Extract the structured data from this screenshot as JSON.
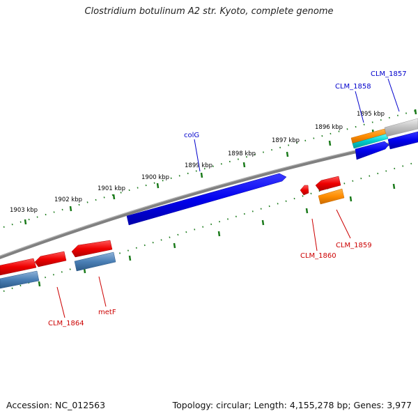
{
  "title": "Clostridium botulinum A2 str. Kyoto, complete genome",
  "footer": {
    "accession": "Accession: NC_012563",
    "topology": "Topology: circular; Length: 4,155,278 bp; Genes: 3,977"
  },
  "colors": {
    "forward_gene": "#0000ee",
    "reverse_gene": "#ee0000",
    "forward_label": "#0000cc",
    "reverse_label": "#cc0000",
    "orange_feature": "#ff8c00",
    "cyan_feature": "#00cccc",
    "steelblue_feature": "#4a7fb5",
    "gray_feature": "#c0c0c0",
    "backbone": "#808080",
    "tick": "#1a7a1a",
    "tick_label": "#000000"
  },
  "ticks": [
    {
      "label": "1895 kbp"
    },
    {
      "label": "1896 kbp"
    },
    {
      "label": "1897 kbp"
    },
    {
      "label": "1898 kbp"
    },
    {
      "label": "1899 kbp"
    },
    {
      "label": "1900 kbp"
    },
    {
      "label": "1901 kbp"
    },
    {
      "label": "1902 kbp"
    },
    {
      "label": "1903 kbp"
    }
  ],
  "gene_labels": {
    "colG": "colG",
    "CLM_1858": "CLM_1858",
    "CLM_1857": "CLM_1857",
    "CLM_1859": "CLM_1859",
    "CLM_1860": "CLM_1860",
    "CLM_1864": "CLM_1864",
    "metF": "metF"
  }
}
